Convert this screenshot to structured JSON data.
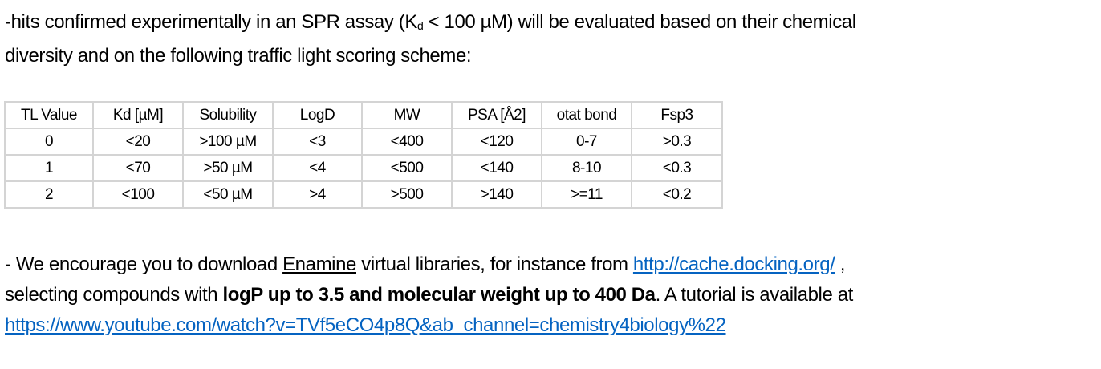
{
  "intro": {
    "pre": "-hits confirmed experimentally in an SPR assay (K",
    "sub": "d",
    "post": " < 100 µM) will be evaluated based on their chemical",
    "line2": "diversity and on the following traffic light scoring scheme:"
  },
  "table": {
    "headers": [
      "TL Value",
      "Kd [µM]",
      "Solubility",
      "LogD",
      "MW",
      "PSA [Å2]",
      "otat bond",
      "Fsp3"
    ],
    "rows": [
      [
        "0",
        "<20",
        ">100 µM",
        "<3",
        "<400",
        "<120",
        "0-7",
        ">0.3"
      ],
      [
        "1",
        "<70",
        ">50 µM",
        "<4",
        "<500",
        "<140",
        "8-10",
        "<0.3"
      ],
      [
        "2",
        "<100",
        "<50 µM",
        ">4",
        ">500",
        ">140",
        ">=11",
        "<0.2"
      ]
    ]
  },
  "note": {
    "t1": "- We encourage you to download ",
    "enamine": "Enamine",
    "t2": " virtual libraries, for instance from ",
    "link1": "http://cache.docking.org/",
    "t3": " ,",
    "t4": "selecting compounds with ",
    "bold": "logP up to 3.5 and molecular weight up to 400 Da",
    "t5": ". A tutorial is available at",
    "link2": "https://www.youtube.com/watch?v=TVf5eCO4p8Q&ab_channel=chemistry4biology%22"
  },
  "colors": {
    "link": "#0563C1",
    "table_border": "#d4d4d4"
  }
}
